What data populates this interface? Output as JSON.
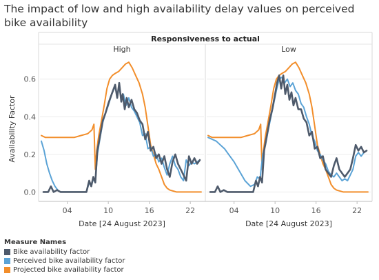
{
  "title": "The impact of low and high availability delay values on perceived bike availability",
  "header": "Responsiveness to actual",
  "legend": {
    "title": "Measure Names",
    "items": [
      {
        "label": "Bike availability factor",
        "color": "#4e5a6b"
      },
      {
        "label": "Perceived bike availability factor",
        "color": "#5ba3d6"
      },
      {
        "label": "Projected bike availability factor",
        "color": "#f28e2b"
      }
    ]
  },
  "chart_data": {
    "type": "line",
    "ylabel": "Availability Factor",
    "xlabel": "Date [24 August 2023]",
    "ylim": [
      -0.05,
      0.72
    ],
    "yticks": [
      0.0,
      0.2,
      0.4,
      0.6
    ],
    "ytick_labels": [
      "0.0",
      "0.2",
      "0.4",
      "0.6"
    ],
    "xlim": [
      0,
      24
    ],
    "xticks": [
      4,
      10,
      16,
      22
    ],
    "xtick_labels": [
      "04",
      "10",
      "16",
      "22"
    ],
    "grid": "horizontal",
    "panels": [
      {
        "name": "High",
        "series": [
          {
            "name": "Bike availability factor",
            "color": "#4e5a6b",
            "x": [
              0.5,
              1.2,
              1.6,
              2,
              2.5,
              3,
              4,
              5,
              6,
              6.8,
              7.2,
              7.5,
              7.8,
              8.1,
              8.4,
              8.8,
              9.2,
              9.6,
              10,
              10.5,
              11,
              11.3,
              11.6,
              11.9,
              12.1,
              12.4,
              12.7,
              13,
              13.4,
              13.8,
              14.2,
              14.6,
              15,
              15.4,
              15.8,
              16.2,
              16.6,
              17,
              17.4,
              17.8,
              18.2,
              18.6,
              19,
              19.4,
              19.8,
              20.2,
              20.6,
              21,
              21.4,
              21.8,
              22.2,
              22.6,
              23,
              23.4
            ],
            "y": [
              0.0,
              0.0,
              0.03,
              0.0,
              0.01,
              0.0,
              0.0,
              0.0,
              0.0,
              0.0,
              0.06,
              0.03,
              0.08,
              0.05,
              0.22,
              0.3,
              0.38,
              0.42,
              0.47,
              0.52,
              0.57,
              0.5,
              0.58,
              0.48,
              0.52,
              0.44,
              0.5,
              0.45,
              0.49,
              0.44,
              0.42,
              0.38,
              0.36,
              0.28,
              0.32,
              0.22,
              0.24,
              0.18,
              0.2,
              0.15,
              0.19,
              0.12,
              0.08,
              0.16,
              0.2,
              0.15,
              0.12,
              0.09,
              0.06,
              0.19,
              0.15,
              0.18,
              0.15,
              0.17
            ]
          },
          {
            "name": "Perceived bike availability factor",
            "color": "#5ba3d6",
            "x": [
              0.2,
              0.6,
              1,
              1.4,
              1.8,
              2.2,
              2.6,
              3,
              3.4,
              4,
              5,
              6,
              6.8,
              7.2,
              7.5,
              7.8,
              8.1,
              8.4,
              8.8,
              9.2,
              9.6,
              10,
              10.5,
              11,
              11.3,
              11.6,
              11.9,
              12.2,
              12.6,
              13,
              13.4,
              13.8,
              14.2,
              14.6,
              15,
              15.4,
              15.8,
              16.2,
              16.6,
              17,
              17.4,
              17.8,
              18.2,
              18.6,
              19,
              19.4,
              19.8,
              20.2,
              20.6,
              21,
              21.4,
              21.8,
              22.2,
              22.6,
              23,
              23.4
            ],
            "y": [
              0.27,
              0.22,
              0.15,
              0.1,
              0.06,
              0.03,
              0.01,
              0.0,
              0.0,
              0.0,
              0.0,
              0.0,
              0.0,
              0.05,
              0.03,
              0.07,
              0.05,
              0.2,
              0.29,
              0.37,
              0.42,
              0.46,
              0.52,
              0.56,
              0.51,
              0.56,
              0.49,
              0.52,
              0.46,
              0.5,
              0.45,
              0.43,
              0.4,
              0.37,
              0.3,
              0.31,
              0.23,
              0.24,
              0.19,
              0.2,
              0.16,
              0.18,
              0.13,
              0.09,
              0.15,
              0.19,
              0.14,
              0.12,
              0.08,
              0.06,
              0.17,
              0.14,
              0.16,
              0.15,
              0.16,
              0.17
            ]
          },
          {
            "name": "Projected bike availability factor",
            "color": "#f28e2b",
            "x": [
              0.2,
              0.8,
              2,
              3,
              4,
              5,
              6,
              7,
              7.6,
              7.9,
              8.1,
              8.3,
              8.6,
              9,
              9.4,
              9.8,
              10.2,
              10.6,
              11,
              11.5,
              12,
              12.5,
              13,
              13.5,
              14,
              14.5,
              15,
              15.4,
              15.8,
              16.2,
              16.6,
              17,
              17.4,
              17.8,
              18.2,
              18.6,
              19,
              20,
              21,
              22,
              23,
              23.6
            ],
            "y": [
              0.3,
              0.29,
              0.29,
              0.29,
              0.29,
              0.29,
              0.3,
              0.31,
              0.33,
              0.36,
              0.12,
              0.22,
              0.3,
              0.38,
              0.46,
              0.55,
              0.6,
              0.62,
              0.63,
              0.64,
              0.66,
              0.68,
              0.69,
              0.66,
              0.62,
              0.58,
              0.52,
              0.45,
              0.35,
              0.25,
              0.2,
              0.15,
              0.12,
              0.08,
              0.04,
              0.02,
              0.01,
              0.0,
              0.0,
              0.0,
              0.0,
              0.0
            ]
          }
        ]
      },
      {
        "name": "Low",
        "series": [
          {
            "name": "Bike availability factor",
            "color": "#4e5a6b",
            "x": [
              0.5,
              1.2,
              1.6,
              2,
              2.5,
              3,
              4,
              5,
              6,
              6.8,
              7.2,
              7.5,
              7.8,
              8.1,
              8.4,
              8.8,
              9.2,
              9.6,
              10,
              10.3,
              10.6,
              10.9,
              11.2,
              11.5,
              11.8,
              12.1,
              12.4,
              12.7,
              13,
              13.4,
              13.8,
              14.2,
              14.6,
              15,
              15.4,
              15.8,
              16.2,
              16.6,
              17,
              17.4,
              17.8,
              18.2,
              18.6,
              19,
              19.4,
              19.8,
              20.2,
              20.6,
              21,
              21.4,
              21.8,
              22.2,
              22.6,
              23,
              23.4
            ],
            "y": [
              0.0,
              0.0,
              0.03,
              0.0,
              0.01,
              0.0,
              0.0,
              0.0,
              0.0,
              0.0,
              0.06,
              0.03,
              0.08,
              0.05,
              0.22,
              0.3,
              0.38,
              0.44,
              0.52,
              0.58,
              0.62,
              0.55,
              0.62,
              0.52,
              0.57,
              0.49,
              0.53,
              0.46,
              0.5,
              0.44,
              0.44,
              0.39,
              0.37,
              0.3,
              0.32,
              0.23,
              0.24,
              0.18,
              0.19,
              0.12,
              0.1,
              0.08,
              0.14,
              0.18,
              0.12,
              0.1,
              0.08,
              0.1,
              0.12,
              0.18,
              0.25,
              0.22,
              0.24,
              0.21,
              0.22
            ]
          },
          {
            "name": "Perceived bike availability factor",
            "color": "#5ba3d6",
            "x": [
              0.2,
              0.8,
              1.4,
              2,
              2.6,
              3.2,
              4,
              4.8,
              5.6,
              6.4,
              7,
              7.4,
              7.8,
              8.2,
              8.6,
              9,
              9.4,
              9.8,
              10.2,
              10.6,
              11,
              11.4,
              11.8,
              12.2,
              12.6,
              13,
              13.4,
              13.8,
              14.2,
              14.6,
              15,
              15.4,
              15.8,
              16.2,
              16.6,
              17,
              17.4,
              17.8,
              18.2,
              18.6,
              19,
              19.4,
              19.8,
              20.2,
              20.6,
              21,
              21.4,
              21.8,
              22.2,
              22.6,
              23,
              23.4
            ],
            "y": [
              0.29,
              0.28,
              0.27,
              0.25,
              0.23,
              0.2,
              0.16,
              0.11,
              0.06,
              0.03,
              0.04,
              0.08,
              0.07,
              0.2,
              0.25,
              0.33,
              0.4,
              0.47,
              0.54,
              0.6,
              0.61,
              0.58,
              0.6,
              0.56,
              0.58,
              0.54,
              0.52,
              0.47,
              0.45,
              0.4,
              0.36,
              0.3,
              0.27,
              0.22,
              0.2,
              0.17,
              0.15,
              0.11,
              0.09,
              0.08,
              0.1,
              0.08,
              0.06,
              0.07,
              0.06,
              0.09,
              0.12,
              0.19,
              0.21,
              0.19,
              0.21,
              0.22
            ]
          },
          {
            "name": "Projected bike availability factor",
            "color": "#f28e2b",
            "x": [
              0.2,
              0.8,
              2,
              3,
              4,
              5,
              6,
              7,
              7.6,
              7.9,
              8.1,
              8.3,
              8.6,
              9,
              9.4,
              9.8,
              10.2,
              10.6,
              11,
              11.5,
              12,
              12.5,
              13,
              13.5,
              14,
              14.5,
              15,
              15.4,
              15.8,
              16.2,
              16.6,
              17,
              17.4,
              17.8,
              18.2,
              18.6,
              19,
              20,
              21,
              22,
              23,
              23.6
            ],
            "y": [
              0.3,
              0.29,
              0.29,
              0.29,
              0.29,
              0.29,
              0.3,
              0.31,
              0.33,
              0.36,
              0.12,
              0.22,
              0.3,
              0.38,
              0.46,
              0.55,
              0.6,
              0.62,
              0.63,
              0.64,
              0.66,
              0.68,
              0.69,
              0.66,
              0.62,
              0.58,
              0.52,
              0.45,
              0.35,
              0.25,
              0.2,
              0.15,
              0.12,
              0.08,
              0.04,
              0.02,
              0.01,
              0.0,
              0.0,
              0.0,
              0.0,
              0.0
            ]
          }
        ]
      }
    ]
  }
}
